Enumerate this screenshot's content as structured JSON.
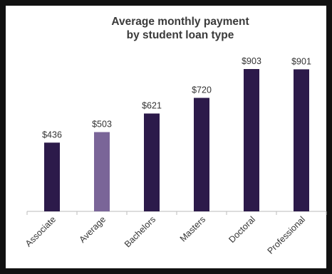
{
  "chart_data": {
    "type": "bar",
    "title_lines": [
      "Average monthly payment",
      "by student loan type"
    ],
    "categories": [
      "Associate",
      "Average",
      "Bachelors",
      "Masters",
      "Doctoral",
      "Professional"
    ],
    "series": [
      {
        "values": [
          436,
          503,
          621,
          720,
          903,
          901
        ],
        "labels": [
          "$436",
          "$503",
          "$621",
          "$720",
          "$903",
          "$901"
        ]
      }
    ],
    "ylim": [
      0,
      903
    ],
    "grid": false,
    "legend": "none",
    "colors": {
      "bar": "#2c1a4a",
      "highlight_bar": "#7a6598",
      "highlight_category": "Average",
      "axis": "#bbbbbb",
      "frame": "#111111"
    }
  }
}
